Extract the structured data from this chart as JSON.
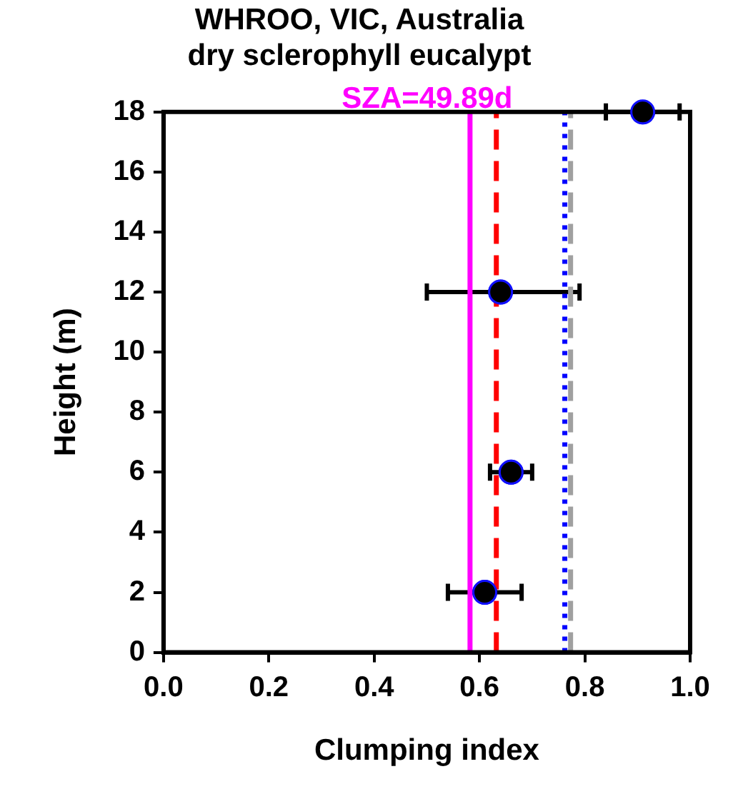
{
  "chart_data": {
    "type": "scatter",
    "title": "WHROO, VIC, Australia\ndry sclerophyll eucalypt",
    "xlabel": "Clumping index",
    "ylabel": "Height (m)",
    "series": [
      {
        "color": "#000000",
        "x": [
          0.91,
          0.64,
          0.66,
          0.61
        ],
        "values": [
          18,
          12,
          6,
          2
        ],
        "xerrors": [
          0.07,
          [
            0.5,
            0.79
          ],
          0.04,
          [
            0.54,
            0.68
          ]
        ]
      }
    ],
    "xlim": [
      0,
      1
    ],
    "xticks": [
      {
        "value": 0,
        "label": "0.0"
      },
      {
        "value": 0.2,
        "label": "0.2"
      },
      {
        "value": 0.4,
        "label": "0.4"
      },
      {
        "value": 0.6,
        "label": "0.6"
      },
      {
        "value": 0.8,
        "label": "0.8"
      },
      {
        "value": 1,
        "label": "1.0"
      }
    ],
    "ylim": [
      0,
      18
    ],
    "yticks": [
      0,
      2,
      4,
      6,
      8,
      10,
      12,
      14,
      16,
      18
    ],
    "annotations": [
      "SZA=49.89d"
    ],
    "ref_lines": [
      {
        "axis": "x",
        "value": 0.582,
        "color": "#ff00ff",
        "line_style": "solid"
      },
      {
        "axis": "x",
        "value": 0.632,
        "color": "#ff0000",
        "line_style": "dashed"
      },
      {
        "axis": "x",
        "value": 0.773,
        "color": "#a0a0a0",
        "line_style": "dashed"
      },
      {
        "axis": "x",
        "value": 0.762,
        "color": "#0000ff",
        "line_style": "dotted"
      }
    ],
    "marker": "circle",
    "grid": false,
    "legend": false
  }
}
